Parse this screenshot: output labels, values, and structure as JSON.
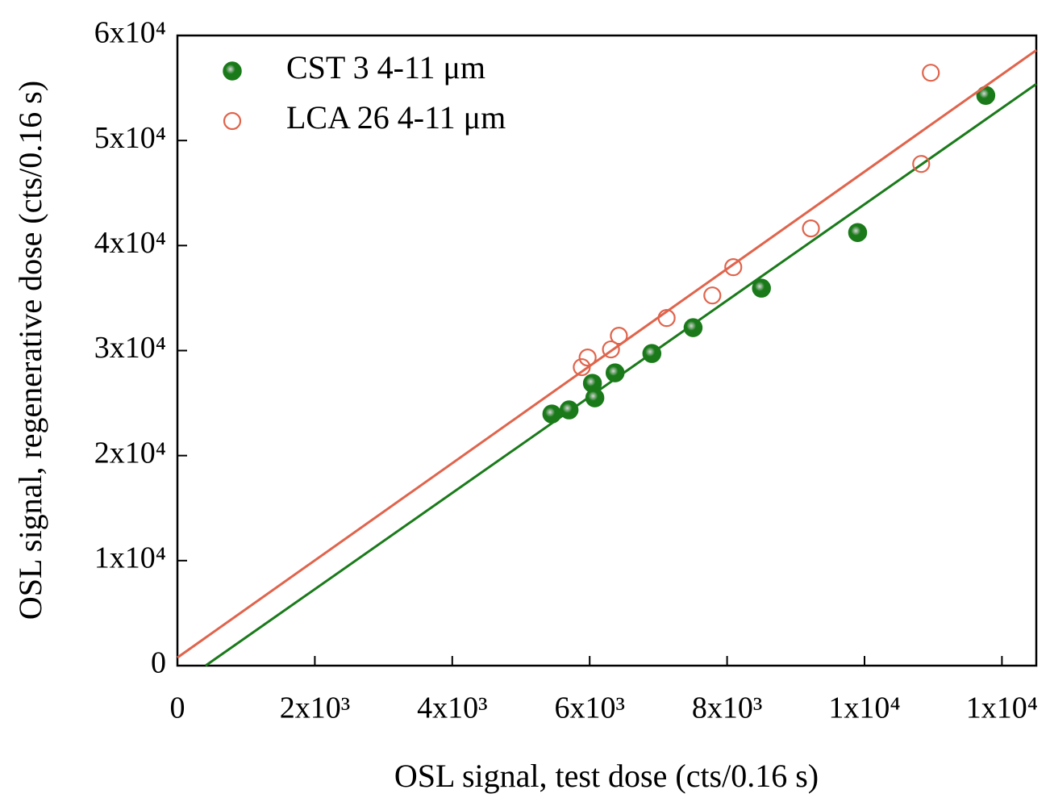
{
  "chart_data": {
    "type": "scatter",
    "x_label": "OSL signal, test dose (cts/0.16 s)",
    "y_label": "OSL signal, regenerative dose (cts/0.16 s)",
    "xlim": [
      0,
      12500
    ],
    "ylim": [
      0,
      60000
    ],
    "xticks": [
      0,
      {
        "value": 2000,
        "label": "2x10³"
      },
      {
        "value": 4000,
        "label": "4x10³"
      },
      {
        "value": 6000,
        "label": "6x10³"
      },
      {
        "value": 8000,
        "label": "8x10³"
      },
      {
        "value": 10000,
        "label": "1x10⁴"
      },
      {
        "value": 12000,
        "label": "1x10⁴"
      }
    ],
    "yticks": [
      0,
      {
        "value": 10000,
        "label": "1x10⁴"
      },
      {
        "value": 20000,
        "label": "2x10⁴"
      },
      {
        "value": 30000,
        "label": "3x10⁴"
      },
      {
        "value": 40000,
        "label": "4x10⁴"
      },
      {
        "value": 50000,
        "label": "5x10⁴"
      },
      {
        "value": 60000,
        "label": "6x10⁴"
      }
    ],
    "legend_position": "upper left",
    "series": [
      {
        "name": "CST 3 4-11 μm",
        "color": "#1a7a1a",
        "marker": "filled",
        "x": [
          5450,
          5700,
          6040,
          6075,
          6370,
          6905,
          7505,
          8500,
          9900,
          11765
        ],
        "values": [
          23960,
          24350,
          26880,
          25500,
          27880,
          29720,
          32180,
          35940,
          41240,
          54300
        ],
        "fit": {
          "x": [
            410,
            12500
          ],
          "y": [
            0,
            55380
          ]
        }
      },
      {
        "name": "LCA 26 4-11 μm",
        "color": "#e0644c",
        "marker": "open",
        "x": [
          5885,
          5970,
          6310,
          6425,
          7120,
          7785,
          8090,
          9220,
          10825,
          10965
        ],
        "values": [
          28420,
          29340,
          30110,
          31410,
          33100,
          35250,
          37940,
          41630,
          47770,
          56450
        ],
        "fit": {
          "x": [
            0,
            12500
          ],
          "y": [
            770,
            58600
          ]
        }
      }
    ]
  }
}
